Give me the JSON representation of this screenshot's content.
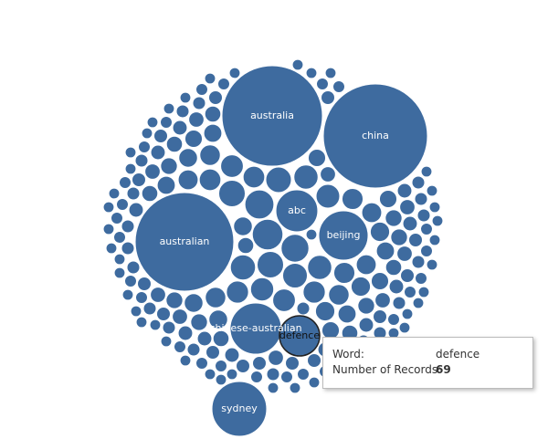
{
  "chart_data": {
    "type": "packed-bubble",
    "color": "#3e6b9f",
    "categories": [
      "australia",
      "china",
      "australian",
      "abc",
      "beijing",
      "chinese-australian",
      "defence",
      "sydney",
      null,
      null,
      null,
      null,
      null,
      null,
      null,
      null,
      null,
      null,
      null,
      null,
      null,
      null,
      null,
      null,
      null,
      null,
      null,
      null,
      null,
      null,
      null,
      null,
      null,
      null,
      null,
      null,
      null,
      null,
      null,
      null,
      null,
      null,
      null,
      null,
      null,
      null,
      null,
      null,
      null,
      null,
      null,
      null,
      null,
      null,
      null,
      null,
      null,
      null,
      null,
      null,
      null,
      null,
      null,
      null,
      null,
      null,
      null,
      null,
      null,
      null,
      null,
      null,
      null,
      null,
      null,
      null,
      null,
      null,
      null,
      null,
      null,
      null,
      null,
      null,
      null,
      null,
      null,
      null,
      null,
      null,
      null,
      null,
      null,
      null,
      null,
      null,
      null,
      null,
      null,
      null,
      null,
      null,
      null,
      null,
      null,
      null,
      null,
      null,
      null,
      null,
      null,
      null,
      null,
      null,
      null,
      null,
      null,
      null,
      null,
      null,
      null,
      null,
      null,
      null,
      null,
      null,
      null,
      null,
      null,
      null,
      null,
      null,
      null,
      null,
      null,
      null,
      null,
      null,
      null,
      null,
      null,
      null,
      null,
      null,
      null,
      null,
      null,
      null,
      null,
      null,
      null,
      null,
      null,
      null,
      null,
      null,
      null,
      null,
      null,
      null,
      null,
      null,
      null,
      null,
      null,
      null,
      null,
      null,
      null,
      null,
      null,
      null,
      null,
      null,
      null,
      null,
      null,
      null,
      null,
      null,
      null,
      null,
      null,
      null,
      null,
      null,
      null,
      null
    ],
    "values": [
      431,
      463,
      415,
      75,
      104,
      112,
      69,
      128,
      40,
      36,
      33,
      30,
      30,
      28,
      27,
      26,
      25,
      25,
      24,
      23,
      22,
      22,
      21,
      21,
      20,
      20,
      19,
      19,
      18,
      18,
      18,
      17,
      17,
      17,
      16,
      16,
      16,
      15,
      15,
      15,
      15,
      14,
      14,
      14,
      14,
      13,
      13,
      13,
      13,
      13,
      12,
      12,
      12,
      12,
      12,
      12,
      11,
      11,
      11,
      11,
      11,
      11,
      11,
      10,
      10,
      10,
      10,
      10,
      10,
      10,
      10,
      10,
      9,
      9,
      9,
      9,
      9,
      9,
      9,
      9,
      9,
      9,
      9,
      8,
      8,
      8,
      8,
      8,
      8,
      8,
      8,
      8,
      8,
      8,
      8,
      8,
      8,
      8,
      7,
      7,
      7,
      7,
      7,
      7,
      7,
      7,
      7,
      7,
      7,
      7,
      7,
      7,
      7,
      7,
      7,
      7,
      7,
      7,
      6,
      6,
      6,
      6,
      6,
      6,
      6,
      6,
      6,
      6,
      6,
      6,
      6,
      6,
      6,
      6,
      6,
      6,
      6,
      6,
      6,
      6,
      6,
      6,
      6,
      5,
      5,
      5,
      5,
      5,
      5,
      5,
      5,
      5,
      5,
      5,
      5,
      5,
      5,
      5,
      5,
      5,
      5,
      5,
      5,
      5,
      5,
      5,
      5,
      5,
      5,
      5,
      5,
      5,
      5,
      5,
      5,
      5,
      5,
      5,
      5,
      5,
      5,
      5,
      5,
      5,
      5,
      5,
      5,
      5
    ]
  },
  "tooltip": {
    "fields": [
      {
        "label": "Word:",
        "value": "defence"
      },
      {
        "label": "Number of Records:",
        "value": 69
      }
    ]
  }
}
